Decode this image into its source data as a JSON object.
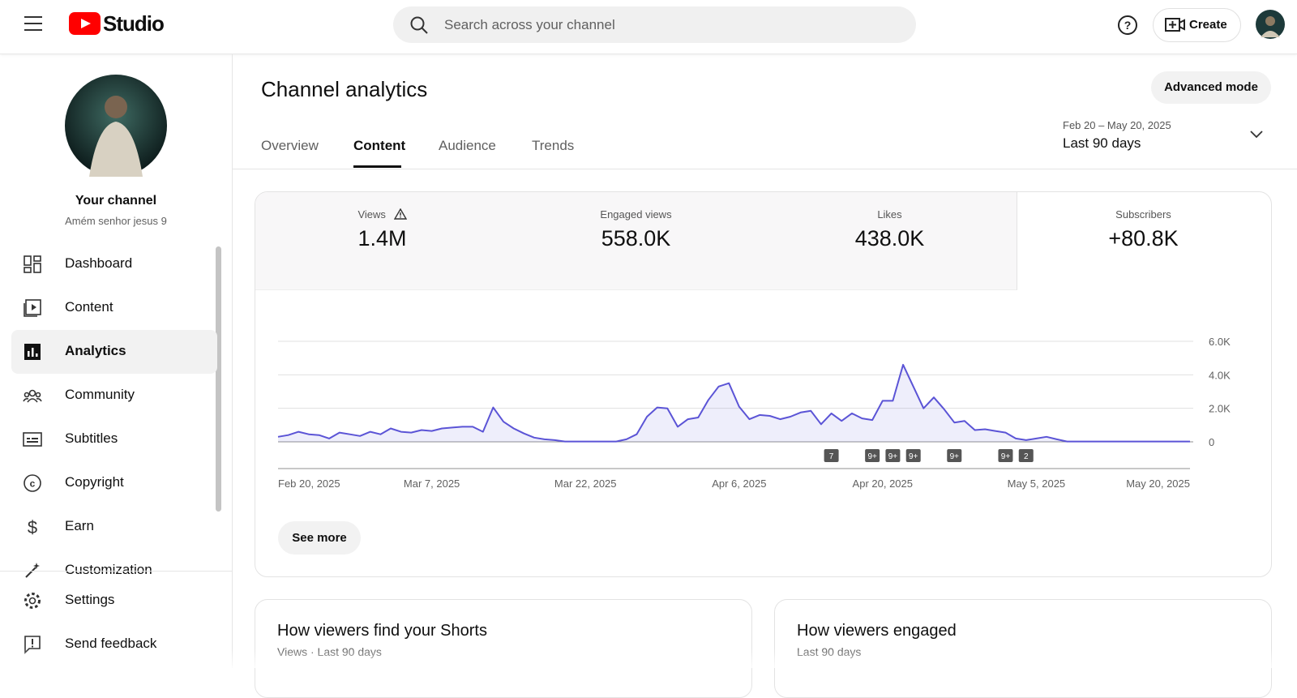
{
  "header": {
    "logo": "Studio",
    "search_placeholder": "Search across your channel",
    "create": "Create"
  },
  "sidebar": {
    "channel_title": "Your channel",
    "channel_name": "Amém senhor jesus 9",
    "nav": [
      "Dashboard",
      "Content",
      "Analytics",
      "Community",
      "Subtitles",
      "Copyright",
      "Earn",
      "Customization"
    ],
    "footer": [
      "Settings",
      "Send feedback"
    ]
  },
  "page": {
    "title": "Channel analytics",
    "tabs": [
      "Overview",
      "Content",
      "Audience",
      "Trends"
    ],
    "advanced_mode": "Advanced mode",
    "date_range": "Feb 20 – May 20, 2025",
    "period": "Last 90 days"
  },
  "metrics": [
    {
      "label": "Views",
      "value": "1.4M"
    },
    {
      "label": "Engaged views",
      "value": "558.0K"
    },
    {
      "label": "Likes",
      "value": "438.0K"
    },
    {
      "label": "Subscribers",
      "value": "+80.8K"
    }
  ],
  "chart": {
    "type": "line",
    "color": "#5b54d6",
    "values": [
      300,
      400,
      600,
      450,
      400,
      200,
      550,
      450,
      350,
      600,
      450,
      800,
      600,
      550,
      700,
      650,
      800,
      850,
      900,
      900,
      600,
      2050,
      1200,
      800,
      500,
      250,
      150,
      100,
      20,
      20,
      20,
      20,
      20,
      20,
      150,
      450,
      1500,
      2050,
      2000,
      900,
      1350,
      1450,
      2500,
      3300,
      3500,
      2100,
      1350,
      1600,
      1550,
      1350,
      1500,
      1750,
      1850,
      1050,
      1700,
      1250,
      1700,
      1400,
      1300,
      2450,
      2450,
      4600,
      3300,
      2000,
      2650,
      1950,
      1150,
      1250,
      700,
      750,
      650,
      550,
      200,
      100,
      200,
      300,
      150,
      20,
      20,
      20,
      20,
      20,
      20,
      20,
      20,
      20,
      20,
      20,
      20,
      20
    ],
    "xlim": [
      0,
      89
    ],
    "xticks": [
      {
        "value": 0,
        "label": "Feb 20, 2025"
      },
      {
        "value": 15,
        "label": "Mar 7, 2025"
      },
      {
        "value": 30,
        "label": "Mar 22, 2025"
      },
      {
        "value": 45,
        "label": "Apr 6, 2025"
      },
      {
        "value": 59,
        "label": "Apr 20, 2025"
      },
      {
        "value": 74,
        "label": "May 5, 2025"
      },
      {
        "value": 89,
        "label": "May 20, 2025"
      }
    ],
    "ylim": [
      0,
      6000
    ],
    "yticks": [
      0,
      {
        "value": 2000,
        "label": "2.0K"
      },
      {
        "value": 4000,
        "label": "4.0K"
      },
      {
        "value": 6000,
        "label": "6.0K"
      }
    ],
    "grid": true,
    "markers": [
      "7",
      "9+",
      "9+",
      "9+",
      "9+",
      "9+",
      "2"
    ]
  },
  "see_more": "See more",
  "cards": [
    {
      "title": "How viewers find your Shorts",
      "subtitle": "Views · Last 90 days"
    },
    {
      "title": "How viewers engaged",
      "subtitle": "Last 90 days"
    }
  ]
}
